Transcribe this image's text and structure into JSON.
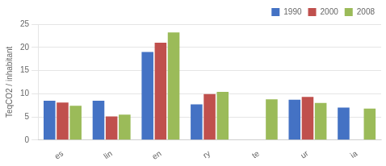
{
  "chart_data": {
    "type": "bar",
    "categories": [
      "es",
      "lin",
      "en",
      "ry",
      "te",
      "ur",
      "ia"
    ],
    "series": [
      {
        "name": "1990",
        "color": "#4472C4",
        "values": [
          8.5,
          8.5,
          19.0,
          7.7,
          null,
          8.7,
          7.0
        ]
      },
      {
        "name": "2000",
        "color": "#C0504D",
        "values": [
          8.1,
          5.1,
          21.0,
          9.9,
          null,
          9.3,
          null
        ]
      },
      {
        "name": "2008",
        "color": "#9BBB59",
        "values": [
          7.4,
          5.5,
          23.2,
          10.4,
          8.8,
          8.0,
          6.8
        ]
      }
    ],
    "ylabel": "TeqCO2 / inhabitant",
    "ylim": [
      0,
      25
    ],
    "yticks": [
      0,
      5,
      10,
      15,
      20,
      25
    ],
    "grid": true,
    "legend": "upper right"
  }
}
